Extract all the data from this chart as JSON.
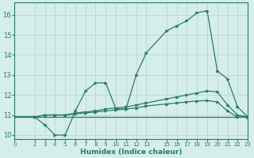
{
  "xlabel": "Humidex (Indice chaleur)",
  "xlim": [
    0,
    23
  ],
  "ylim": [
    9.8,
    16.6
  ],
  "yticks": [
    10,
    11,
    12,
    13,
    14,
    15,
    16
  ],
  "xticks": [
    0,
    2,
    3,
    4,
    5,
    6,
    7,
    8,
    9,
    10,
    11,
    12,
    13,
    15,
    16,
    17,
    18,
    19,
    20,
    21,
    22,
    23
  ],
  "bg_color": "#d5eee9",
  "grid_color": "#b8d8d2",
  "line_color": "#2a7a6a",
  "series1_x": [
    0,
    2,
    3,
    4,
    5,
    6,
    7,
    8,
    9,
    10,
    11,
    12,
    13,
    15,
    16,
    17,
    18,
    19,
    20,
    21,
    22,
    23
  ],
  "series1_y": [
    10.9,
    10.9,
    10.5,
    10.0,
    10.0,
    11.2,
    12.2,
    12.6,
    12.6,
    11.3,
    11.3,
    13.0,
    14.1,
    15.2,
    15.45,
    15.7,
    16.1,
    16.2,
    13.2,
    12.8,
    11.4,
    10.9
  ],
  "series2_x": [
    0,
    2,
    3,
    4,
    5,
    6,
    7,
    8,
    9,
    10,
    11,
    12,
    13,
    15,
    16,
    17,
    18,
    19,
    20,
    21,
    22,
    23
  ],
  "series2_y": [
    10.9,
    10.9,
    11.0,
    11.0,
    11.0,
    11.1,
    11.15,
    11.2,
    11.3,
    11.35,
    11.4,
    11.5,
    11.6,
    11.8,
    11.9,
    12.0,
    12.1,
    12.2,
    12.15,
    11.5,
    11.0,
    10.9
  ],
  "series3_x": [
    0,
    2,
    3,
    4,
    5,
    6,
    7,
    8,
    9,
    10,
    11,
    12,
    13,
    15,
    16,
    17,
    18,
    19,
    20,
    21,
    22,
    23
  ],
  "series3_y": [
    10.9,
    10.9,
    11.0,
    11.0,
    11.0,
    11.05,
    11.1,
    11.15,
    11.2,
    11.25,
    11.3,
    11.35,
    11.45,
    11.55,
    11.6,
    11.65,
    11.7,
    11.72,
    11.65,
    11.2,
    10.9,
    10.9
  ],
  "series4_x": [
    0,
    23
  ],
  "series4_y": [
    10.9,
    10.9
  ]
}
